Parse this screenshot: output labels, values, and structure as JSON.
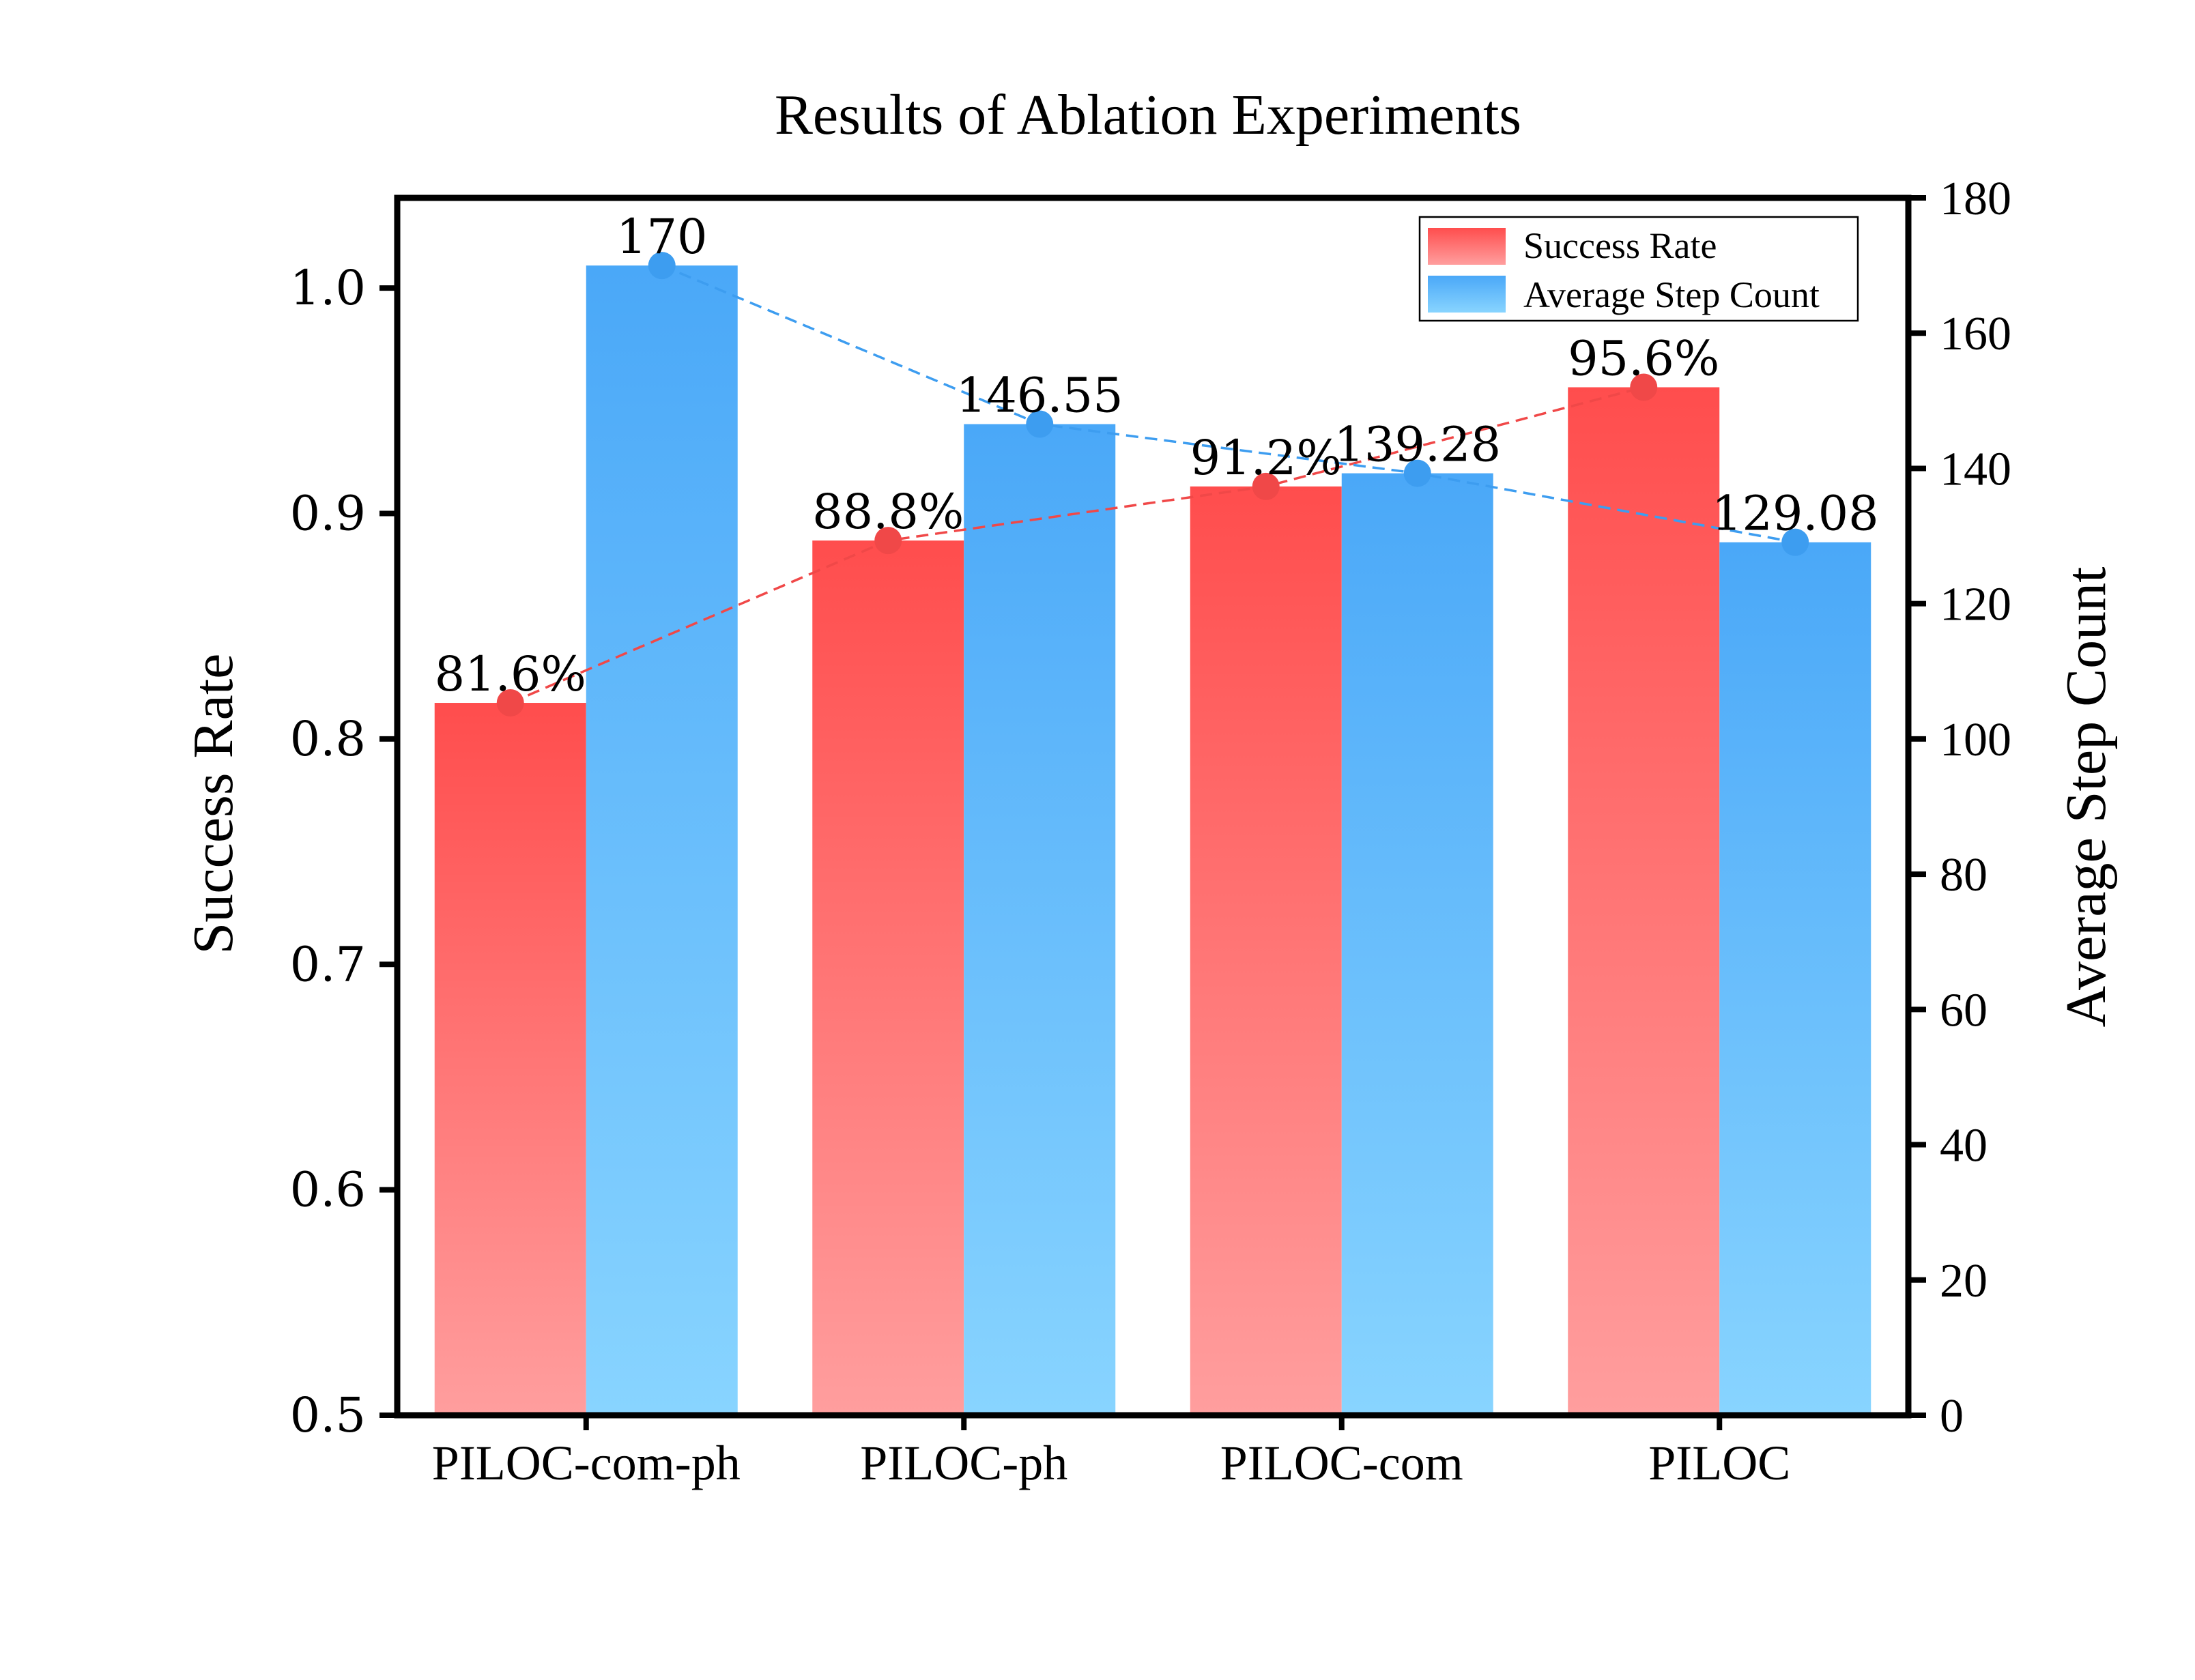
{
  "chart_data": {
    "type": "bar",
    "title": "Results of Ablation Experiments",
    "categories": [
      "PILOC-com-ph",
      "PILOC-ph",
      "PILOC-com",
      "PILOC"
    ],
    "y_left": {
      "label": "Success Rate",
      "ylim": [
        0.5,
        1.04
      ],
      "ticks": [
        0.5,
        0.6,
        0.7,
        0.8,
        0.9,
        1.0
      ],
      "tick_labels": [
        "0.5",
        "0.6",
        "0.7",
        "0.8",
        "0.9",
        "1.0"
      ]
    },
    "y_right": {
      "label": "Average Step Count",
      "ylim": [
        0,
        180
      ],
      "ticks": [
        0,
        20,
        40,
        60,
        80,
        100,
        120,
        140,
        160,
        180
      ],
      "tick_labels": [
        "0",
        "20",
        "40",
        "60",
        "80",
        "100",
        "120",
        "140",
        "160",
        "180"
      ]
    },
    "series": [
      {
        "name": "Success Rate",
        "axis": "left",
        "values": [
          0.816,
          0.888,
          0.912,
          0.956
        ],
        "labels": [
          "81.6%",
          "88.8%",
          "91.2%",
          "95.6%"
        ],
        "color_top": "#ff4d4d",
        "color_bottom": "#ff9e9e",
        "line_color": "#f04848"
      },
      {
        "name": "Average Step Count",
        "axis": "right",
        "values": [
          170,
          146.55,
          139.28,
          129.08
        ],
        "labels": [
          "170",
          "146.55",
          "139.28",
          "129.08"
        ],
        "color_top": "#4aa8f8",
        "color_bottom": "#88d4ff",
        "line_color": "#3d9df0"
      }
    ],
    "legend": {
      "position": "top-right",
      "entries": [
        "Success Rate",
        "Average Step Count"
      ]
    }
  }
}
